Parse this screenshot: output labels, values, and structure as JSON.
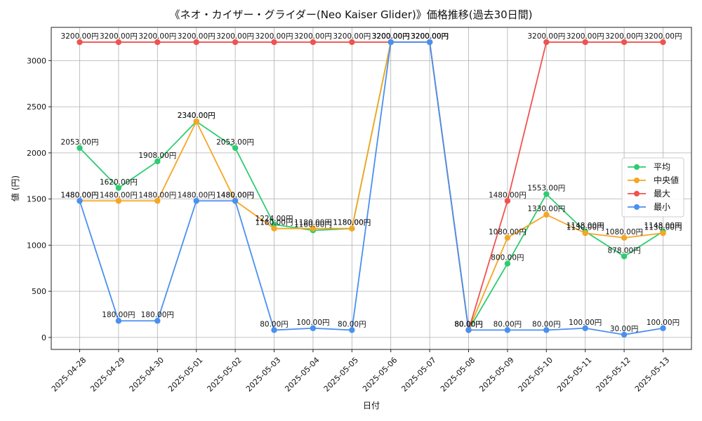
{
  "chart_data": {
    "type": "line",
    "title": "《ネオ・カイザー・グライダー(Neo Kaiser Glider)》価格推移(過去30日間)",
    "xlabel": "日付",
    "ylabel": "値 (円)",
    "ylim": [
      -130,
      3360
    ],
    "yticks": [
      0,
      500,
      1000,
      1500,
      2000,
      2500,
      3000
    ],
    "grid": true,
    "legend_position": "center-right",
    "value_suffix": "円",
    "categories": [
      "2025-04-28",
      "2025-04-29",
      "2025-04-30",
      "2025-05-01",
      "2025-05-02",
      "2025-05-03",
      "2025-05-04",
      "2025-05-05",
      "2025-05-06",
      "2025-05-07",
      "2025-05-08",
      "2025-05-09",
      "2025-05-10",
      "2025-05-11",
      "2025-05-12",
      "2025-05-13"
    ],
    "series": [
      {
        "name": "平均",
        "color": "#2ecc71",
        "values": [
          2053,
          1620,
          1908,
          2340,
          2053,
          1224,
          1160,
          1180,
          3200,
          3200,
          80,
          800,
          1553,
          1148,
          878,
          1148
        ]
      },
      {
        "name": "中央値",
        "color": "#f5a623",
        "values": [
          1480,
          1480,
          1480,
          2340,
          1480,
          1180,
          1180,
          1180,
          3200,
          3200,
          80,
          1080,
          1330,
          1130,
          1080,
          1130
        ]
      },
      {
        "name": "最大",
        "color": "#ef5350",
        "values": [
          3200,
          3200,
          3200,
          3200,
          3200,
          3200,
          3200,
          3200,
          3200,
          3200,
          80,
          1480,
          3200,
          3200,
          3200,
          3200
        ]
      },
      {
        "name": "最小",
        "color": "#4a90f0",
        "values": [
          1480,
          180,
          180,
          1480,
          1480,
          80,
          100,
          80,
          3200,
          3200,
          80,
          80,
          80,
          100,
          30,
          100
        ]
      }
    ]
  }
}
